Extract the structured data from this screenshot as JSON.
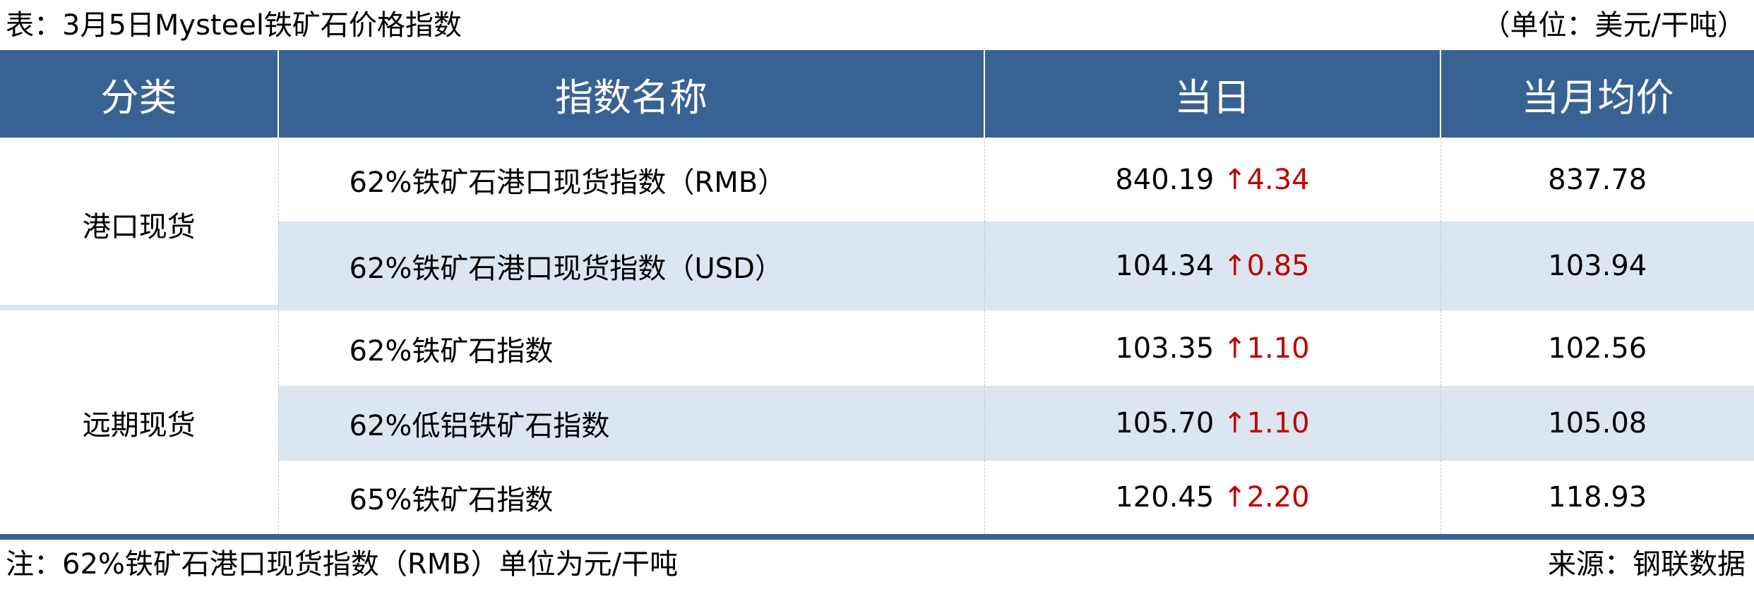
{
  "title": "表：3月5日Mysteel铁矿石价格指数",
  "unit": "（单位：美元/干吨）",
  "colors": {
    "header_bg": "#386293",
    "alt_row_bg": "#dce6f1",
    "up": "#c00000"
  },
  "headers": [
    "分类",
    "指数名称",
    "当日",
    "当月均价"
  ],
  "groups": [
    {
      "category": "港口现货",
      "rows": [
        {
          "name": "62%铁矿石港口现货指数（RMB）",
          "today": "840.19",
          "arrow": "↑",
          "change": "4.34",
          "month_avg": "837.78"
        },
        {
          "name": "62%铁矿石港口现货指数（USD）",
          "today": "104.34",
          "arrow": "↑",
          "change": "0.85",
          "month_avg": "103.94"
        }
      ]
    },
    {
      "category": "远期现货",
      "rows": [
        {
          "name": "62%铁矿石指数",
          "today": "103.35",
          "arrow": "↑",
          "change": "1.10",
          "month_avg": "102.56"
        },
        {
          "name": "62%低铝铁矿石指数",
          "today": "105.70",
          "arrow": "↑",
          "change": "1.10",
          "month_avg": "105.08"
        },
        {
          "name": "65%铁矿石指数",
          "today": "120.45",
          "arrow": "↑",
          "change": "2.20",
          "month_avg": "118.93"
        }
      ]
    }
  ],
  "note": "注：62%铁矿石港口现货指数（RMB）单位为元/干吨",
  "source": "来源：钢联数据"
}
